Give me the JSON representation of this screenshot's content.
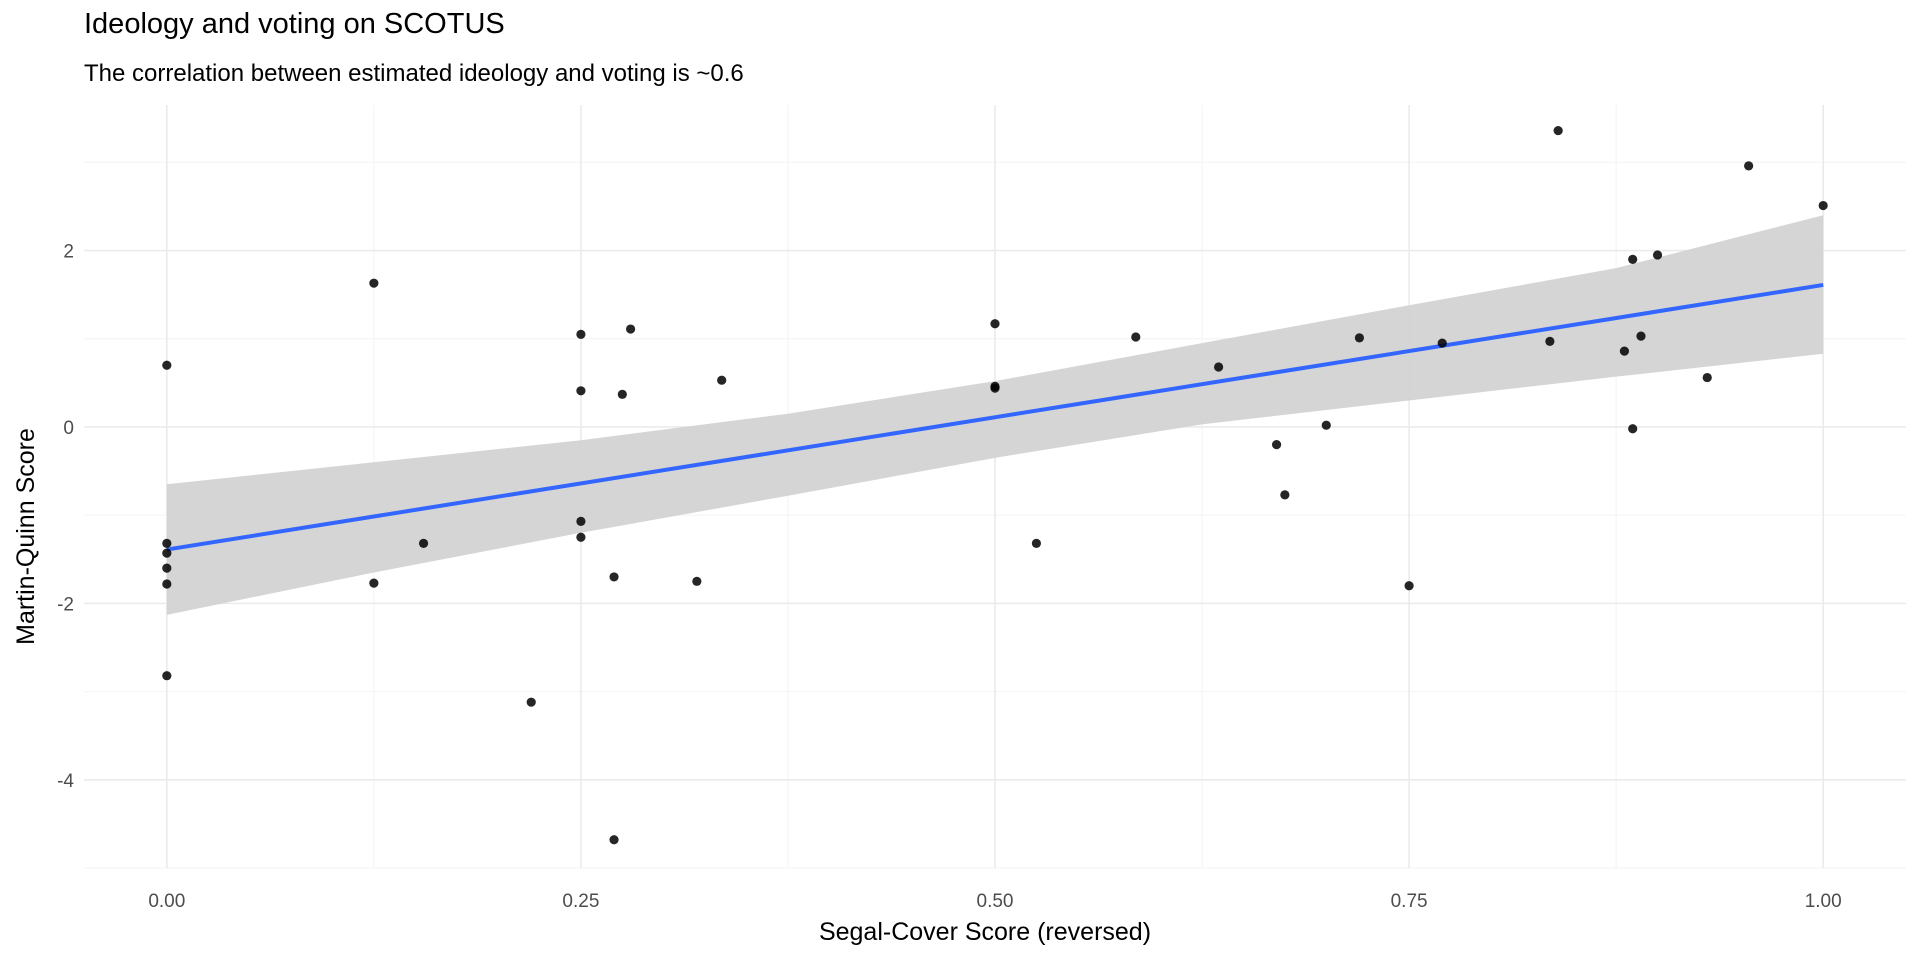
{
  "chart_data": {
    "type": "scatter",
    "title": "Ideology and voting on SCOTUS",
    "subtitle": "The correlation between estimated ideology and voting is ~0.6",
    "xlabel": "Segal-Cover Score (reversed)",
    "ylabel": "Martin-Quinn Score",
    "xlim": [
      -0.05,
      1.05
    ],
    "ylim": [
      -5.0,
      3.65
    ],
    "x_ticks": [
      0.0,
      0.25,
      0.5,
      0.75,
      1.0
    ],
    "x_tick_labels": [
      "0.00",
      "0.25",
      "0.50",
      "0.75",
      "1.00"
    ],
    "y_ticks": [
      -4,
      -2,
      0,
      2
    ],
    "y_tick_labels": [
      "-4",
      "-2",
      "0",
      "2"
    ],
    "grid": true,
    "points": [
      {
        "x": 0.0,
        "y": 0.7
      },
      {
        "x": 0.0,
        "y": -1.32
      },
      {
        "x": 0.0,
        "y": -1.43
      },
      {
        "x": 0.0,
        "y": -1.6
      },
      {
        "x": 0.0,
        "y": -1.78
      },
      {
        "x": 0.0,
        "y": -2.82
      },
      {
        "x": 0.125,
        "y": 1.63
      },
      {
        "x": 0.125,
        "y": -1.77
      },
      {
        "x": 0.155,
        "y": -1.32
      },
      {
        "x": 0.22,
        "y": -3.12
      },
      {
        "x": 0.25,
        "y": 1.05
      },
      {
        "x": 0.25,
        "y": 0.41
      },
      {
        "x": 0.25,
        "y": -1.07
      },
      {
        "x": 0.25,
        "y": -1.25
      },
      {
        "x": 0.27,
        "y": -1.7
      },
      {
        "x": 0.27,
        "y": -4.68
      },
      {
        "x": 0.275,
        "y": 0.37
      },
      {
        "x": 0.28,
        "y": 1.11
      },
      {
        "x": 0.32,
        "y": -1.75
      },
      {
        "x": 0.335,
        "y": 0.53
      },
      {
        "x": 0.5,
        "y": 1.17
      },
      {
        "x": 0.5,
        "y": 0.46
      },
      {
        "x": 0.5,
        "y": 0.44
      },
      {
        "x": 0.525,
        "y": -1.32
      },
      {
        "x": 0.585,
        "y": 1.02
      },
      {
        "x": 0.635,
        "y": 0.68
      },
      {
        "x": 0.67,
        "y": -0.2
      },
      {
        "x": 0.675,
        "y": -0.77
      },
      {
        "x": 0.7,
        "y": 0.02
      },
      {
        "x": 0.72,
        "y": 1.01
      },
      {
        "x": 0.75,
        "y": -1.8
      },
      {
        "x": 0.77,
        "y": 0.95
      },
      {
        "x": 0.835,
        "y": 0.97
      },
      {
        "x": 0.84,
        "y": 3.36
      },
      {
        "x": 0.88,
        "y": 0.86
      },
      {
        "x": 0.885,
        "y": 1.9
      },
      {
        "x": 0.885,
        "y": -0.02
      },
      {
        "x": 0.89,
        "y": 1.03
      },
      {
        "x": 0.9,
        "y": 1.95
      },
      {
        "x": 0.93,
        "y": 0.56
      },
      {
        "x": 0.955,
        "y": 2.96
      },
      {
        "x": 1.0,
        "y": 2.51
      }
    ],
    "fit_line": {
      "method": "linear",
      "x": [
        0.0,
        1.0
      ],
      "y": [
        -1.39,
        1.61
      ]
    },
    "confidence_band": {
      "x": [
        0.0,
        0.125,
        0.25,
        0.375,
        0.5,
        0.625,
        0.75,
        0.875,
        1.0
      ],
      "lower": [
        -2.13,
        -1.65,
        -1.2,
        -0.78,
        -0.35,
        0.03,
        0.3,
        0.57,
        0.83
      ],
      "upper": [
        -0.65,
        -0.4,
        -0.15,
        0.15,
        0.52,
        0.95,
        1.38,
        1.8,
        2.4
      ]
    },
    "colors": {
      "point": "#000000",
      "fit_line": "#3366ff",
      "band": "#d3d3d3",
      "grid_major": "#ebebeb",
      "grid_minor": "#f5f5f5"
    }
  }
}
